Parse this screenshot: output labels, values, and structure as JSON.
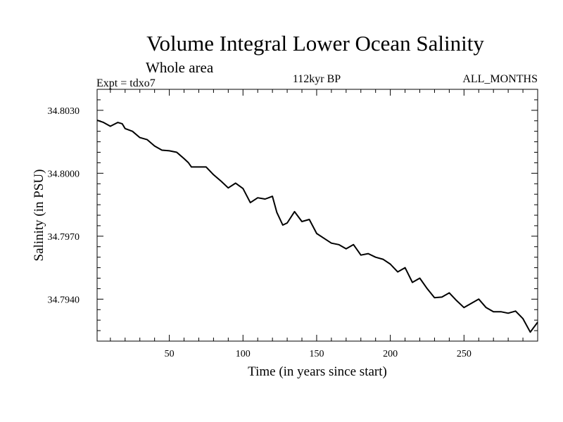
{
  "chart_data": {
    "type": "line",
    "title": "Volume Integral Lower Ocean Salinity",
    "subtitle": "Whole area",
    "annotation_left": "Expt = tdxo7",
    "annotation_center": "112kyr BP",
    "annotation_right": "ALL_MONTHS",
    "xlabel": "Time (in years since start)",
    "ylabel": "Salinity (in PSU)",
    "xlim": [
      1,
      300
    ],
    "ylim": [
      34.792,
      34.804
    ],
    "xticks": [
      50,
      100,
      150,
      200,
      250
    ],
    "xtick_labels": [
      "50",
      "100",
      "150",
      "200",
      "250"
    ],
    "yticks": [
      34.794,
      34.797,
      34.8,
      34.803
    ],
    "ytick_labels": [
      "34.7940",
      "34.7970",
      "34.8000",
      "34.8030"
    ],
    "grid": false,
    "series": [
      {
        "color": "#000000",
        "x": [
          1,
          5,
          10,
          15,
          18,
          20,
          25,
          30,
          35,
          40,
          45,
          50,
          55,
          60,
          63,
          65,
          70,
          75,
          80,
          85,
          90,
          95,
          100,
          105,
          110,
          115,
          120,
          123,
          127,
          130,
          135,
          140,
          145,
          150,
          155,
          160,
          165,
          170,
          175,
          180,
          185,
          190,
          195,
          200,
          205,
          210,
          215,
          220,
          225,
          230,
          235,
          240,
          245,
          250,
          255,
          260,
          265,
          270,
          275,
          280,
          285,
          290,
          295,
          300
        ],
        "y": [
          34.80253,
          34.80243,
          34.80224,
          34.80242,
          34.80236,
          34.80213,
          34.802,
          34.8017,
          34.8016,
          34.8013,
          34.8011,
          34.80107,
          34.801,
          34.8007,
          34.8005,
          34.8003,
          34.8003,
          34.8003,
          34.79993,
          34.79963,
          34.7993,
          34.79953,
          34.79927,
          34.7986,
          34.79883,
          34.79877,
          34.7989,
          34.79813,
          34.79753,
          34.79763,
          34.79817,
          34.7977,
          34.7978,
          34.79713,
          34.7969,
          34.79667,
          34.7966,
          34.7964,
          34.7966,
          34.7961,
          34.79617,
          34.796,
          34.7959,
          34.79567,
          34.7953,
          34.7955,
          34.7948,
          34.795,
          34.7945,
          34.79407,
          34.7941,
          34.7943,
          34.79393,
          34.7936,
          34.7938,
          34.794,
          34.7936,
          34.7934,
          34.7934,
          34.79333,
          34.79343,
          34.79307,
          34.79243,
          34.7929
        ]
      }
    ]
  }
}
